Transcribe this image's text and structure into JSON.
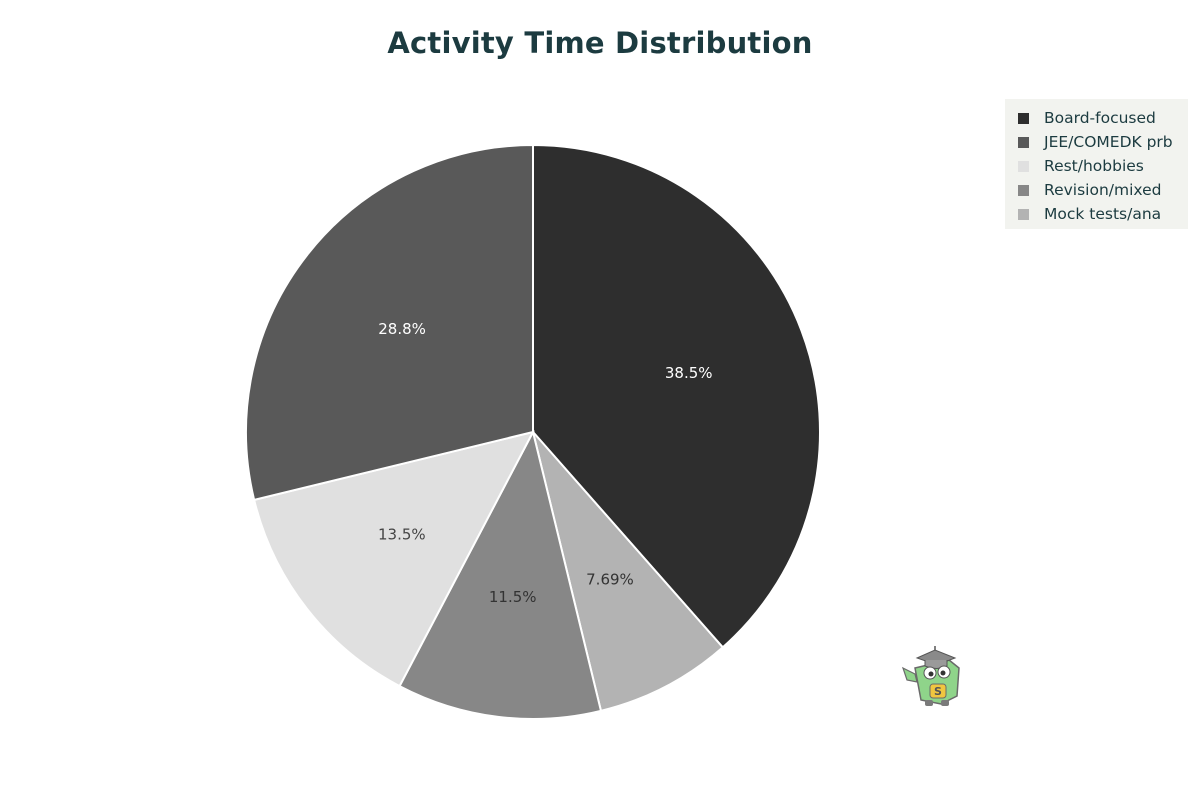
{
  "chart_data": {
    "type": "pie",
    "title": "Activity Time Distribution",
    "legend_position": "top-right",
    "slices": [
      {
        "label": "Board-focused",
        "value": 38.5,
        "display": "38.5%",
        "color": "#2e2e2e",
        "text_color": "#ffffff"
      },
      {
        "label": "Mock tests/ana",
        "value": 7.69,
        "display": "7.69%",
        "color": "#b3b3b3",
        "text_color": "#333333"
      },
      {
        "label": "Revision/mixed",
        "value": 11.5,
        "display": "11.5%",
        "color": "#878787",
        "text_color": "#333333"
      },
      {
        "label": "Rest/hobbies",
        "value": 13.5,
        "display": "13.5%",
        "color": "#e0e0e0",
        "text_color": "#444444"
      },
      {
        "label": "JEE/COMEDK prb",
        "value": 28.8,
        "display": "28.8%",
        "color": "#595959",
        "text_color": "#ffffff"
      }
    ],
    "legend_order": [
      "Board-focused",
      "JEE/COMEDK prb",
      "Rest/hobbies",
      "Revision/mixed",
      "Mock tests/ana"
    ]
  },
  "colors": {
    "title": "#1c3b40",
    "legend_background": "#f2f3ef",
    "slice_border": "#ffffff"
  },
  "icons": {
    "mascot": "graduation-cap-mascot-icon"
  }
}
